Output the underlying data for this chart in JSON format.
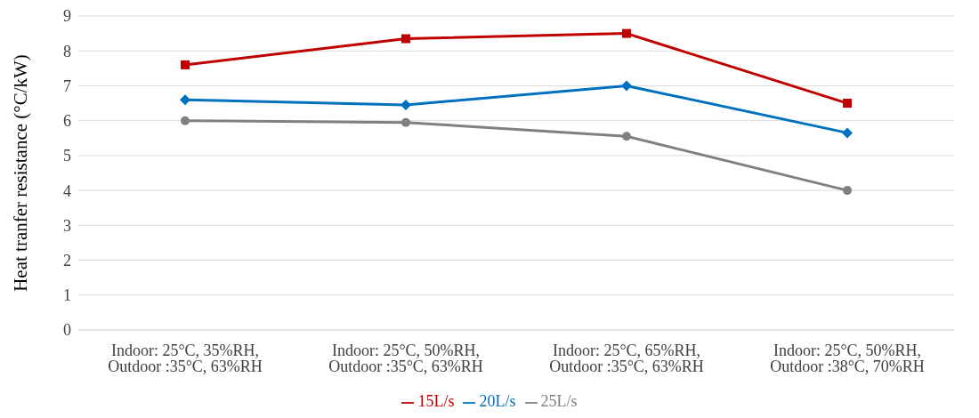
{
  "chart_data": {
    "type": "line",
    "ylabel": "Heat tranfer resistance (°C/kW)",
    "categories": [
      "Indoor: 25°C, 35%RH, Outdoor :35°C, 63%RH",
      "Indoor: 25°C, 50%RH, Outdoor :35°C, 63%RH",
      "Indoor: 25°C, 65%RH, Outdoor :35°C, 63%RH",
      "Indoor: 25°C, 50%RH, Outdoor :38°C, 70%RH"
    ],
    "series": [
      {
        "name": "15L/s",
        "color": "#c00000",
        "marker": "square",
        "values": [
          7.6,
          8.35,
          8.5,
          6.5
        ]
      },
      {
        "name": "20L/s",
        "color": "#0070c0",
        "marker": "diamond",
        "values": [
          6.6,
          6.45,
          7.0,
          5.65
        ]
      },
      {
        "name": "25L/s",
        "color": "#808080",
        "marker": "circle",
        "values": [
          6.0,
          5.95,
          5.55,
          4.0
        ]
      }
    ],
    "ylim": [
      0,
      9
    ],
    "yticks": [
      0,
      1,
      2,
      3,
      4,
      5,
      6,
      7,
      8,
      9
    ],
    "grid": "y",
    "legend": "bottom",
    "line_style": "solid"
  }
}
